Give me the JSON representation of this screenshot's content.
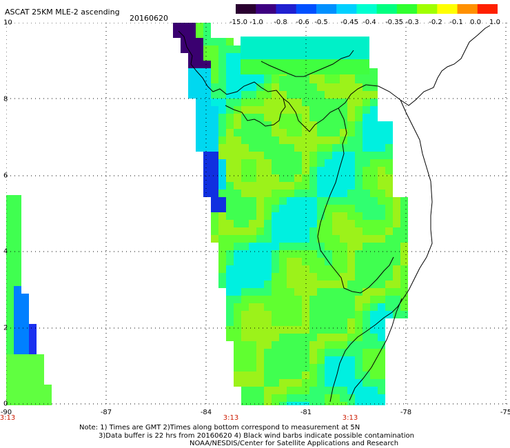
{
  "header": {
    "title": "ASCAT 25KM MLE-2 ascending",
    "date": "20160620"
  },
  "colorbar": {
    "labels": [
      "-15.0",
      "-1.0",
      "-0.8",
      "-0.6",
      "-0.5",
      "-0.45",
      "-0.4",
      "-0.35",
      "-0.3",
      "-0.2",
      "-0.1",
      "0.0",
      "1.0"
    ],
    "colors": [
      "#2a0030",
      "#3d0080",
      "#2020d0",
      "#0050ff",
      "#0090ff",
      "#00d0ff",
      "#00ffd0",
      "#00ff80",
      "#30ff30",
      "#a0ff00",
      "#ffff00",
      "#ff9000",
      "#ff2000"
    ]
  },
  "axes": {
    "x_ticks": [
      "-90",
      "-87",
      "-84",
      "-81",
      "-78",
      "-75"
    ],
    "y_ticks": [
      "0",
      "2",
      "4",
      "6",
      "8",
      "10"
    ],
    "times": [
      "3:13",
      "3:13",
      "3:13"
    ]
  },
  "notes": {
    "line1": "Note: 1) Times are GMT 2)Times along bottom correspond to measurement at 5N",
    "line2": "3)Data buffer is 22 hrs from 20160620 4) Black wind barbs indicate possible contamination",
    "line3": "NOAA/NESDIS/Center for Satellite Applications and Research"
  }
}
